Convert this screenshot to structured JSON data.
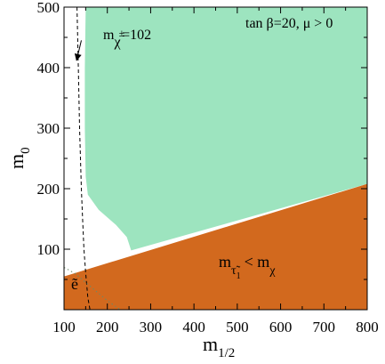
{
  "chart_data": {
    "type": "area",
    "xlabel": {
      "main": "m",
      "sub": "1/2"
    },
    "ylabel": {
      "main": "m",
      "sub": "0"
    },
    "xlim": [
      100,
      800
    ],
    "ylim": [
      0,
      500
    ],
    "grid": false,
    "xticks": [
      100,
      200,
      300,
      400,
      500,
      600,
      700,
      800
    ],
    "yticks": [
      100,
      200,
      300,
      400,
      500
    ],
    "xtick_labels": [
      "100",
      "200",
      "300",
      "400",
      "500",
      "600",
      "700",
      "800"
    ],
    "ytick_labels": [
      "100",
      "200",
      "300",
      "400",
      "500"
    ],
    "regions": [
      {
        "id": "green-region",
        "color": "#9de4bf",
        "points": [
          [
            150,
            500
          ],
          [
            800,
            500
          ],
          [
            800,
            208
          ],
          [
            265,
            100
          ],
          [
            255,
            98
          ],
          [
            245,
            120
          ],
          [
            220,
            140
          ],
          [
            180,
            165
          ],
          [
            155,
            190
          ],
          [
            150,
            220
          ],
          [
            148,
            300
          ],
          [
            148,
            400
          ]
        ]
      },
      {
        "id": "orange-region",
        "color": "#d2691e",
        "points": [
          [
            100,
            0
          ],
          [
            800,
            0
          ],
          [
            800,
            208
          ],
          [
            100,
            55
          ]
        ]
      }
    ],
    "curves": [
      {
        "id": "chargino-contour",
        "style": "dashed",
        "color": "#000000",
        "points": [
          [
            130,
            500
          ],
          [
            133,
            400
          ],
          [
            136,
            300
          ],
          [
            140,
            200
          ],
          [
            143,
            150
          ],
          [
            146,
            100
          ],
          [
            150,
            60
          ],
          [
            155,
            20
          ],
          [
            160,
            0
          ]
        ]
      },
      {
        "id": "selectron-contour",
        "style": "dotted",
        "color": "#6a8a6a",
        "points": [
          [
            100,
            70
          ],
          [
            125,
            60
          ],
          [
            150,
            45
          ],
          [
            175,
            30
          ],
          [
            200,
            15
          ],
          [
            230,
            0
          ]
        ]
      }
    ],
    "annotations": {
      "tanbeta": "tan  β=20, μ > 0",
      "chargino": {
        "main": "m",
        "sub": "χ",
        "sup": "±",
        "rest": "=102"
      },
      "stau": {
        "main": "m",
        "sub": "τ̃",
        "subsub": "1",
        "rest": "< m",
        "rest_sub": "χ"
      },
      "selectron": "ẽ"
    },
    "arrow": {
      "from": [
        140,
        445
      ],
      "to": [
        129,
        412
      ]
    }
  }
}
